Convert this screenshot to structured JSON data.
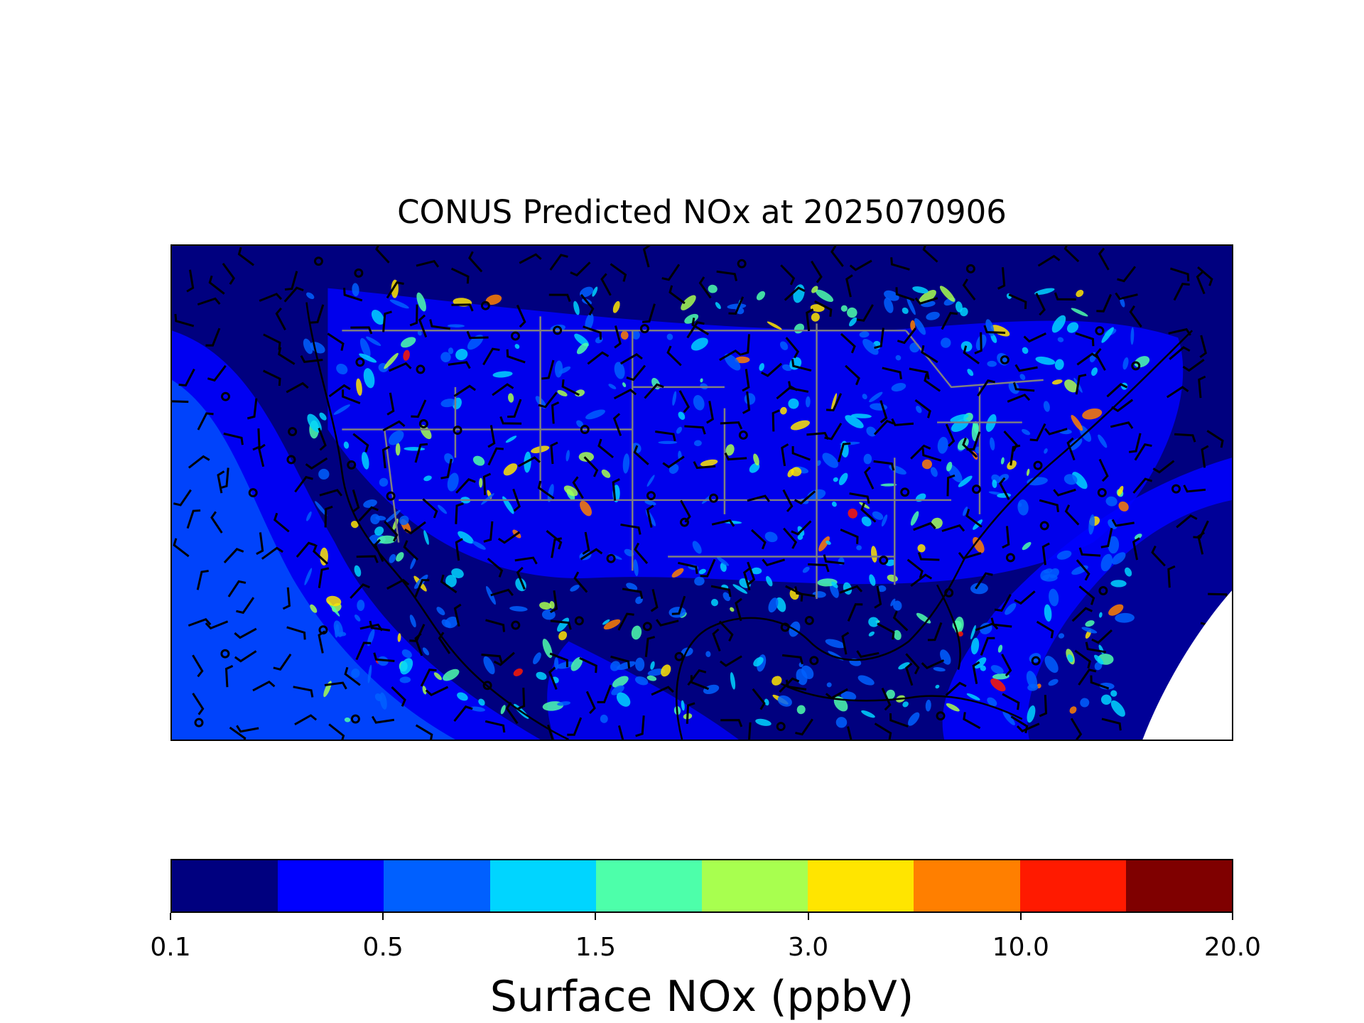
{
  "title": "CONUS Predicted NOx at 2025070906",
  "map": {
    "variable": "Surface NOx",
    "overlays": [
      "state-borders",
      "country-borders",
      "coastlines",
      "wind-barbs",
      "calm-wind-circles"
    ],
    "background_level_color": "#00007f"
  },
  "colorbar": {
    "label": "Surface NOx (ppbV)",
    "colors": [
      "#00007f",
      "#0000ff",
      "#0060ff",
      "#00d5ff",
      "#4dffaa",
      "#a8ff4f",
      "#ffe500",
      "#ff7f00",
      "#ff1a00",
      "#7f0000"
    ],
    "tick_labels": [
      "0.1",
      "0.5",
      "1.5",
      "3.0",
      "10.0",
      "20.0"
    ],
    "tick_bin_indices": [
      0,
      2,
      4,
      6,
      8,
      10
    ]
  }
}
